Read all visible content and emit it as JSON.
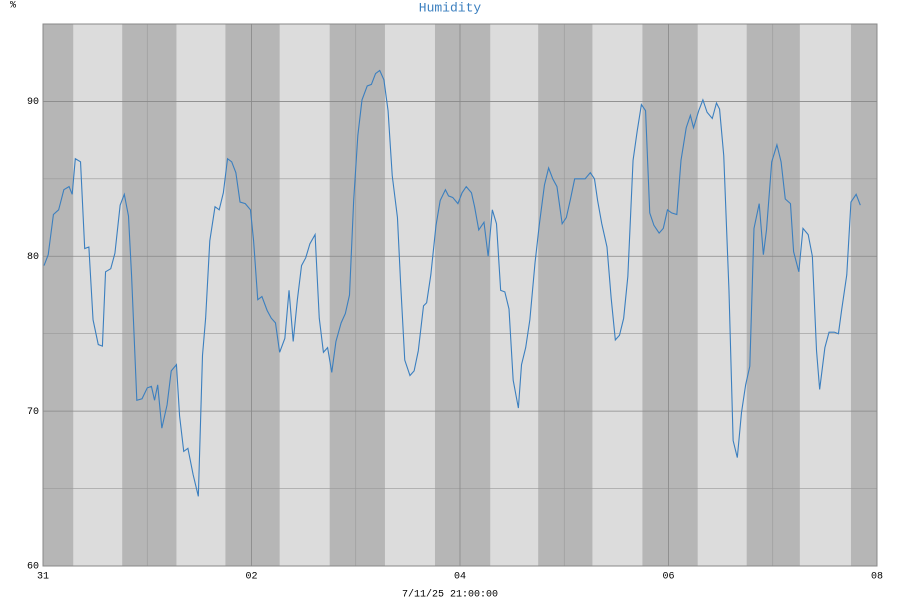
{
  "chart_data": {
    "type": "line",
    "title": "Humidity",
    "ylabel": "%",
    "xlabel": "7/11/25 21:00:00",
    "color": "#3b7fbf",
    "xlim": [
      0,
      8
    ],
    "xticks": [
      {
        "value": 0,
        "label": "31"
      },
      {
        "value": 2,
        "label": "02"
      },
      {
        "value": 4,
        "label": "04"
      },
      {
        "value": 6,
        "label": "06"
      },
      {
        "value": 8,
        "label": "08"
      }
    ],
    "xgrid_minor": [
      1,
      3,
      5,
      7
    ],
    "ylim": [
      60,
      95
    ],
    "yticks": [
      60,
      70,
      80,
      90
    ],
    "ygrid_minor": [
      65,
      75,
      85
    ],
    "grid": true,
    "shade_bands": [
      [
        0,
        0.29
      ],
      [
        0.76,
        1.28
      ],
      [
        1.75,
        2.27
      ],
      [
        2.75,
        3.28
      ],
      [
        3.76,
        4.29
      ],
      [
        4.75,
        5.27
      ],
      [
        5.75,
        6.28
      ],
      [
        6.75,
        7.26
      ],
      [
        7.75,
        8
      ]
    ],
    "x": [
      0.01,
      0.05,
      0.1,
      0.15,
      0.2,
      0.25,
      0.28,
      0.31,
      0.36,
      0.4,
      0.44,
      0.48,
      0.53,
      0.57,
      0.6,
      0.65,
      0.69,
      0.74,
      0.78,
      0.82,
      0.85,
      0.9,
      0.95,
      1.0,
      1.04,
      1.07,
      1.1,
      1.14,
      1.19,
      1.23,
      1.28,
      1.31,
      1.35,
      1.39,
      1.44,
      1.49,
      1.53,
      1.56,
      1.6,
      1.65,
      1.69,
      1.73,
      1.77,
      1.81,
      1.85,
      1.89,
      1.94,
      1.99,
      2.02,
      2.06,
      2.1,
      2.15,
      2.19,
      2.23,
      2.27,
      2.32,
      2.36,
      2.4,
      2.44,
      2.48,
      2.52,
      2.56,
      2.61,
      2.65,
      2.69,
      2.73,
      2.77,
      2.81,
      2.86,
      2.9,
      2.94,
      2.98,
      3.02,
      3.06,
      3.11,
      3.15,
      3.19,
      3.23,
      3.27,
      3.31,
      3.35,
      3.4,
      3.43,
      3.47,
      3.52,
      3.56,
      3.6,
      3.65,
      3.68,
      3.72,
      3.77,
      3.81,
      3.86,
      3.89,
      3.93,
      3.98,
      4.02,
      4.06,
      4.11,
      4.14,
      4.18,
      4.23,
      4.27,
      4.31,
      4.35,
      4.39,
      4.43,
      4.47,
      4.51,
      4.56,
      4.59,
      4.63,
      4.67,
      4.72,
      4.76,
      4.81,
      4.85,
      4.89,
      4.93,
      4.98,
      5.02,
      5.06,
      5.1,
      5.15,
      5.2,
      5.25,
      5.29,
      5.32,
      5.36,
      5.41,
      5.45,
      5.49,
      5.53,
      5.57,
      5.61,
      5.66,
      5.7,
      5.74,
      5.78,
      5.82,
      5.86,
      5.91,
      5.95,
      5.99,
      6.03,
      6.08,
      6.12,
      6.17,
      6.21,
      6.24,
      6.29,
      6.33,
      6.37,
      6.42,
      6.46,
      6.49,
      6.53,
      6.58,
      6.62,
      6.66,
      6.7,
      6.74,
      6.78,
      6.82,
      6.87,
      6.91,
      6.94,
      6.99,
      7.04,
      7.08,
      7.12,
      7.17,
      7.2,
      7.25,
      7.29,
      7.34,
      7.38,
      7.42,
      7.45,
      7.5,
      7.54,
      7.59,
      7.63,
      7.66,
      7.71,
      7.75,
      7.8,
      7.84
    ],
    "values": [
      79.4,
      80.1,
      82.7,
      83.0,
      84.3,
      84.5,
      84.0,
      86.3,
      86.1,
      80.5,
      80.6,
      75.9,
      74.3,
      74.2,
      79.0,
      79.2,
      80.2,
      83.3,
      84.0,
      82.6,
      78.7,
      70.7,
      70.8,
      71.5,
      71.6,
      70.7,
      71.7,
      68.9,
      70.4,
      72.6,
      73.0,
      69.7,
      67.4,
      67.6,
      65.9,
      64.5,
      73.6,
      76.0,
      81.0,
      83.2,
      83.0,
      84.1,
      86.3,
      86.1,
      85.4,
      83.5,
      83.4,
      83.0,
      81.0,
      77.2,
      77.4,
      76.5,
      76.0,
      75.7,
      73.8,
      74.7,
      77.8,
      74.5,
      77.2,
      79.4,
      79.9,
      80.8,
      81.4,
      76.0,
      73.8,
      74.1,
      72.5,
      74.5,
      75.7,
      76.3,
      77.5,
      83.6,
      87.8,
      90.1,
      91.0,
      91.1,
      91.8,
      92.0,
      91.4,
      89.4,
      85.2,
      82.5,
      78.3,
      73.3,
      72.3,
      72.6,
      73.9,
      76.8,
      77.0,
      78.8,
      82.0,
      83.6,
      84.3,
      83.9,
      83.8,
      83.4,
      84.1,
      84.5,
      84.1,
      83.2,
      81.7,
      82.2,
      80.0,
      83.0,
      82.1,
      77.8,
      77.7,
      76.6,
      72.0,
      70.2,
      73.0,
      74.1,
      75.9,
      79.6,
      82.0,
      84.6,
      85.7,
      85.0,
      84.5,
      82.1,
      82.5,
      83.7,
      85.0,
      85.0,
      85.0,
      85.4,
      85.0,
      83.6,
      82.1,
      80.6,
      77.3,
      74.6,
      74.9,
      76.0,
      78.7,
      86.2,
      88.1,
      89.8,
      89.4,
      82.8,
      82.0,
      81.5,
      81.8,
      83.0,
      82.8,
      82.7,
      86.2,
      88.3,
      89.1,
      88.3,
      89.4,
      90.1,
      89.3,
      88.9,
      89.9,
      89.5,
      86.5,
      77.8,
      68.1,
      67.0,
      69.9,
      71.7,
      72.9,
      81.8,
      83.4,
      80.1,
      81.7,
      86.1,
      87.2,
      86.1,
      83.7,
      83.4,
      80.3,
      79.0,
      81.8,
      81.4,
      80.0,
      73.9,
      71.4,
      74.1,
      75.1,
      75.1,
      75.0,
      76.5,
      78.8,
      83.5,
      84.0,
      83.3
    ]
  }
}
